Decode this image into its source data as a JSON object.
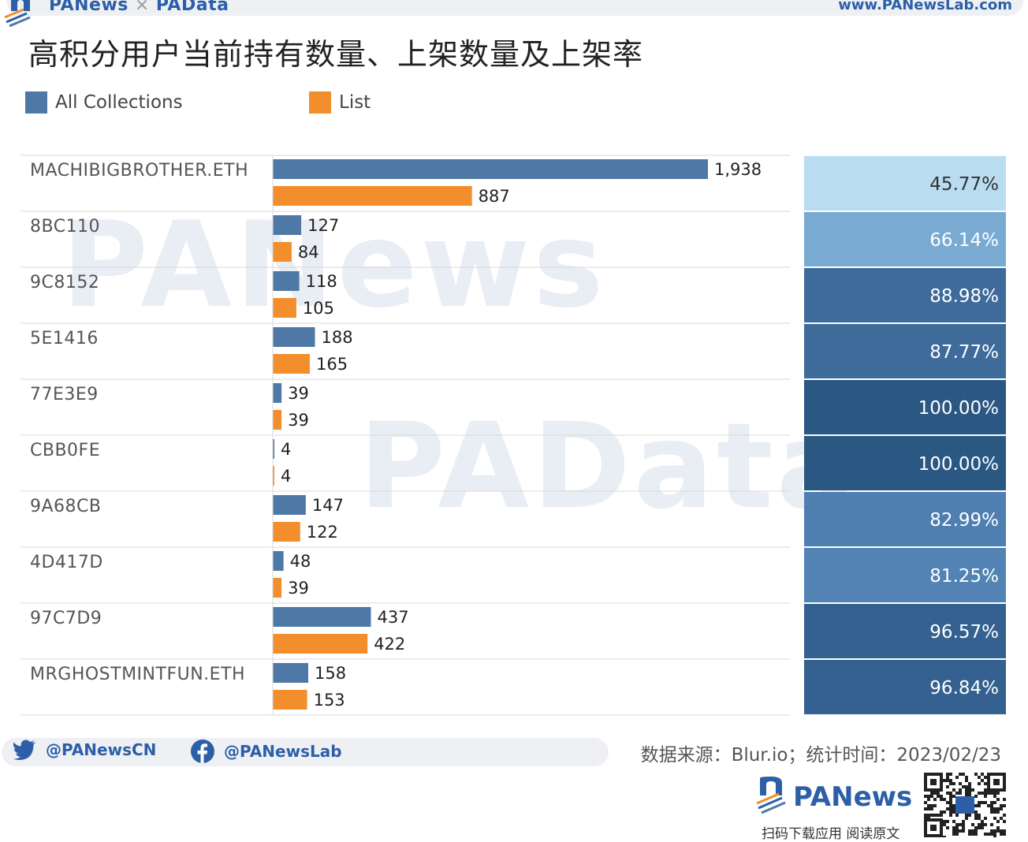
{
  "header": {
    "brand_left": "PANews",
    "brand_sep": "×",
    "brand_right": "PAData",
    "site": "www.PANewsLab.com"
  },
  "title": "高积分用户当前持有数量、上架数量及上架率",
  "legend": [
    {
      "label": "All Collections",
      "color": "#4e79a7"
    },
    {
      "label": "List",
      "color": "#f28e2b"
    }
  ],
  "watermarks": {
    "top": "PANews",
    "middle": "PAData"
  },
  "chart_data": {
    "type": "bar",
    "orientation": "horizontal",
    "title": "高积分用户当前持有数量、上架数量及上架率",
    "categories": [
      "MACHIBIGBROTHER.ETH",
      "8BC110",
      "9C8152",
      "5E1416",
      "77E3E9",
      "CBB0FE",
      "9A68CB",
      "4D417D",
      "97C7D9",
      "MRGHOSTMINTFUN.ETH"
    ],
    "series": [
      {
        "name": "All Collections",
        "values": [
          1938,
          127,
          118,
          188,
          39,
          4,
          147,
          48,
          437,
          158
        ],
        "labels": [
          "1,938",
          "127",
          "118",
          "188",
          "39",
          "4",
          "147",
          "48",
          "437",
          "158"
        ],
        "color": "#4e79a7"
      },
      {
        "name": "List",
        "values": [
          887,
          84,
          105,
          165,
          39,
          4,
          122,
          39,
          422,
          153
        ],
        "labels": [
          "887",
          "84",
          "105",
          "165",
          "39",
          "4",
          "122",
          "39",
          "422",
          "153"
        ],
        "color": "#f28e2b"
      }
    ],
    "rate_labels": [
      "45.77%",
      "66.14%",
      "88.98%",
      "87.77%",
      "100.00%",
      "100.00%",
      "82.99%",
      "81.25%",
      "96.57%",
      "96.84%"
    ],
    "rate_values": [
      45.77,
      66.14,
      88.98,
      87.77,
      100.0,
      100.0,
      82.99,
      81.25,
      96.57,
      96.84
    ],
    "rate_colors": [
      "#b9dcf0",
      "#79aad2",
      "#3f6b9b",
      "#3f6b9b",
      "#2a5882",
      "#2a5882",
      "#4f7eb0",
      "#5283b4",
      "#34618f",
      "#34618f"
    ],
    "xlim": [
      0,
      1938
    ]
  },
  "footer": {
    "twitter": "@PANewsCN",
    "facebook": "@PANewsLab",
    "source": "数据来源：Blur.io；统计时间：2023/02/23",
    "logo_text": "PANews",
    "app_cta": "扫码下载应用  阅读原文"
  }
}
